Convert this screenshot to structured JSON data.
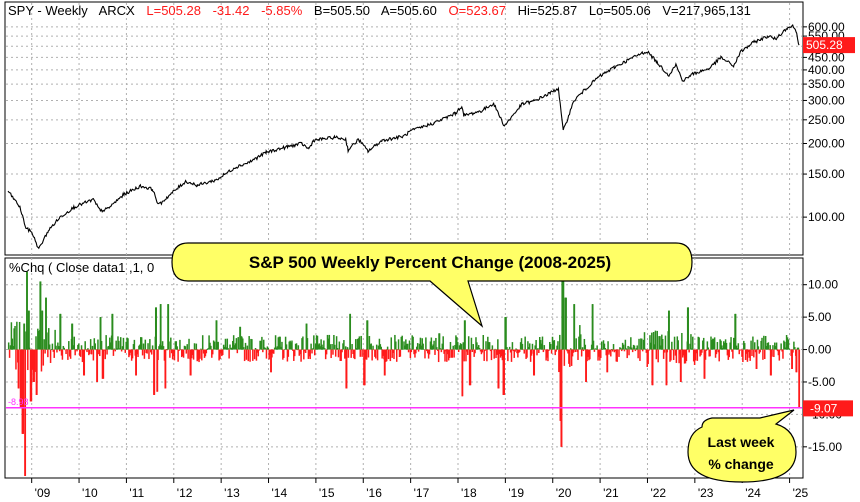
{
  "header": {
    "symbol": "SPY - Weekly",
    "exchange": "ARCX",
    "last": "L=505.28",
    "change": "-31.42",
    "change_pct": "-5.85%",
    "bid": "B=505.50",
    "ask": "A=505.60",
    "open": "O=523.67",
    "high": "Hi=525.87",
    "low": "Lo=505.06",
    "volume": "V=217,965,131"
  },
  "lower_panel": {
    "label": "%Chq ( Close data1 ,1, 0"
  },
  "callouts": {
    "title": "S&P 500 Weekly Percent Change (2008-2025)",
    "note_line1": "Last week",
    "note_line2": "% change"
  },
  "colors": {
    "up": "#2a8c1e",
    "down": "#ff1a1a",
    "price_line": "#000000",
    "last_price_badge": "#ff1a1a",
    "reference_line": "#ff33ff",
    "callout_fill": "#ffff66",
    "grid": "#b0b0b0"
  },
  "chart_data": [
    {
      "type": "line",
      "name": "SPY weekly price",
      "y_scale": "log",
      "ylim": [
        72,
        640
      ],
      "y_ticks": [
        100,
        150,
        200,
        250,
        300,
        350,
        400,
        450,
        500,
        550,
        600
      ],
      "y_tick_labels": [
        "100.00",
        "150.00",
        "200.00",
        "250.00",
        "300.00",
        "350.00",
        "400.00",
        "450.00",
        "500.00",
        "550.00",
        "600.00"
      ],
      "last_value_label": "505.28",
      "last_value": 505.28,
      "points": [
        [
          2008.5,
          128
        ],
        [
          2008.75,
          110
        ],
        [
          2008.88,
          90
        ],
        [
          2009.0,
          87
        ],
        [
          2009.15,
          74
        ],
        [
          2009.35,
          88
        ],
        [
          2009.6,
          100
        ],
        [
          2009.9,
          110
        ],
        [
          2010.3,
          118
        ],
        [
          2010.45,
          106
        ],
        [
          2010.6,
          108
        ],
        [
          2010.95,
          124
        ],
        [
          2011.3,
          134
        ],
        [
          2011.55,
          130
        ],
        [
          2011.68,
          112
        ],
        [
          2011.95,
          125
        ],
        [
          2012.25,
          140
        ],
        [
          2012.5,
          135
        ],
        [
          2012.9,
          142
        ],
        [
          2013.3,
          160
        ],
        [
          2013.6,
          168
        ],
        [
          2013.95,
          184
        ],
        [
          2014.4,
          194
        ],
        [
          2014.7,
          200
        ],
        [
          2014.85,
          190
        ],
        [
          2014.95,
          206
        ],
        [
          2015.4,
          212
        ],
        [
          2015.63,
          208
        ],
        [
          2015.68,
          188
        ],
        [
          2015.9,
          208
        ],
        [
          2016.1,
          186
        ],
        [
          2016.4,
          206
        ],
        [
          2016.85,
          214
        ],
        [
          2017.0,
          225
        ],
        [
          2017.5,
          243
        ],
        [
          2017.95,
          266
        ],
        [
          2018.08,
          285
        ],
        [
          2018.12,
          260
        ],
        [
          2018.5,
          272
        ],
        [
          2018.75,
          292
        ],
        [
          2018.98,
          236
        ],
        [
          2019.35,
          290
        ],
        [
          2019.6,
          298
        ],
        [
          2019.95,
          322
        ],
        [
          2020.12,
          337
        ],
        [
          2020.22,
          225
        ],
        [
          2020.45,
          300
        ],
        [
          2020.7,
          335
        ],
        [
          2020.95,
          372
        ],
        [
          2021.3,
          410
        ],
        [
          2021.6,
          440
        ],
        [
          2021.9,
          470
        ],
        [
          2022.0,
          475
        ],
        [
          2022.2,
          430
        ],
        [
          2022.45,
          380
        ],
        [
          2022.6,
          420
        ],
        [
          2022.75,
          360
        ],
        [
          2022.95,
          385
        ],
        [
          2023.3,
          405
        ],
        [
          2023.55,
          450
        ],
        [
          2023.82,
          415
        ],
        [
          2023.97,
          475
        ],
        [
          2024.25,
          520
        ],
        [
          2024.55,
          550
        ],
        [
          2024.7,
          535
        ],
        [
          2024.95,
          595
        ],
        [
          2025.08,
          605
        ],
        [
          2025.15,
          565
        ],
        [
          2025.2,
          505.28
        ]
      ]
    },
    {
      "type": "bar",
      "name": "%Chg weekly percent change",
      "ylim": [
        -19.5,
        13.5
      ],
      "y_ticks": [
        10,
        5,
        0,
        -5,
        -10,
        -15
      ],
      "y_tick_labels": [
        "10.00",
        "5.00",
        "0.00",
        "-5.00",
        "-10.00",
        "-15.00"
      ],
      "last_value_label": "-9.07",
      "last_value": -9.07,
      "reference_level": -8.98,
      "reference_label": "-8.98",
      "x_ticks": [
        2009,
        2010,
        2011,
        2012,
        2013,
        2014,
        2015,
        2016,
        2017,
        2018,
        2019,
        2020,
        2021,
        2022,
        2023,
        2024,
        2025
      ],
      "x_tick_labels": [
        "'09",
        "'10",
        "'11",
        "'12",
        "'13",
        "'14",
        "'15",
        "'16",
        "'17",
        "'18",
        "'19",
        "'20",
        "'21",
        "'22",
        "'23",
        "'24",
        "'25"
      ],
      "events": [
        [
          2008.72,
          -6.0
        ],
        [
          2008.77,
          -9.0
        ],
        [
          2008.81,
          -13.0
        ],
        [
          2008.84,
          4.0
        ],
        [
          2008.86,
          -19.5
        ],
        [
          2008.9,
          12.0
        ],
        [
          2008.94,
          6.0
        ],
        [
          2008.98,
          -8.0
        ],
        [
          2009.04,
          -5.0
        ],
        [
          2009.1,
          -7.0
        ],
        [
          2009.18,
          10.5
        ],
        [
          2009.22,
          6.0
        ],
        [
          2009.3,
          8.0
        ],
        [
          2009.6,
          5.5
        ],
        [
          2009.85,
          4.0
        ],
        [
          2010.1,
          -4.0
        ],
        [
          2010.38,
          -5.0
        ],
        [
          2010.45,
          5.0
        ],
        [
          2010.5,
          -4.5
        ],
        [
          2010.7,
          5.5
        ],
        [
          2011.2,
          -4.0
        ],
        [
          2011.58,
          -7.0
        ],
        [
          2011.62,
          6.5
        ],
        [
          2011.65,
          -6.5
        ],
        [
          2011.72,
          7.0
        ],
        [
          2011.82,
          -6.0
        ],
        [
          2011.88,
          7.0
        ],
        [
          2012.35,
          -4.0
        ],
        [
          2012.9,
          4.5
        ],
        [
          2013.4,
          3.5
        ],
        [
          2014.05,
          -3.5
        ],
        [
          2014.8,
          4.0
        ],
        [
          2015.64,
          -6.0
        ],
        [
          2015.72,
          5.5
        ],
        [
          2016.02,
          -5.5
        ],
        [
          2016.08,
          4.5
        ],
        [
          2016.45,
          -4.0
        ],
        [
          2017.6,
          2.5
        ],
        [
          2018.09,
          -7.2
        ],
        [
          2018.14,
          4.5
        ],
        [
          2018.25,
          -5.5
        ],
        [
          2018.85,
          -6.0
        ],
        [
          2018.96,
          -7.0
        ],
        [
          2019.0,
          5.0
        ],
        [
          2019.6,
          -4.0
        ],
        [
          2020.16,
          -11.0
        ],
        [
          2020.18,
          -15.0
        ],
        [
          2020.2,
          12.5
        ],
        [
          2020.22,
          10.5
        ],
        [
          2020.27,
          8.0
        ],
        [
          2020.45,
          7.0
        ],
        [
          2020.7,
          -5.0
        ],
        [
          2020.84,
          7.0
        ],
        [
          2021.15,
          -3.5
        ],
        [
          2022.1,
          -5.5
        ],
        [
          2022.4,
          -5.5
        ],
        [
          2022.45,
          6.0
        ],
        [
          2022.7,
          -5.0
        ],
        [
          2022.85,
          6.5
        ],
        [
          2023.2,
          -4.5
        ],
        [
          2023.85,
          5.5
        ],
        [
          2024.3,
          -3.0
        ],
        [
          2024.6,
          -4.0
        ],
        [
          2025.05,
          -3.0
        ],
        [
          2025.14,
          -3.5
        ],
        [
          2025.2,
          -9.07
        ]
      ]
    }
  ]
}
